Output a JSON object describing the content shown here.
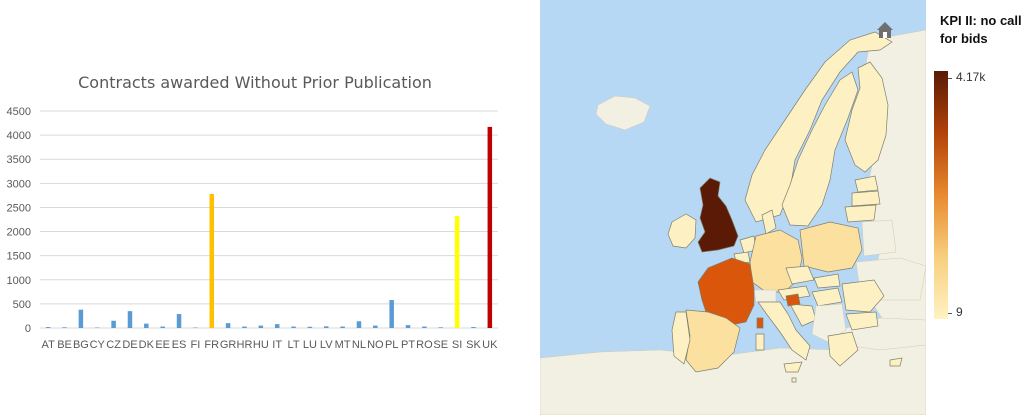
{
  "chart_data": {
    "type": "bar",
    "title": "Contracts awarded Without Prior Publication",
    "categories": [
      "AT",
      "BE",
      "BG",
      "CY",
      "CZ",
      "DE",
      "DK",
      "EE",
      "ES",
      "FI",
      "FR",
      "GR",
      "HR",
      "HU",
      "IT",
      "LT",
      "LU",
      "LV",
      "MT",
      "NL",
      "NO",
      "PL",
      "PT",
      "RO",
      "SE",
      "SI",
      "SK",
      "UK"
    ],
    "values": [
      20,
      15,
      380,
      10,
      150,
      350,
      90,
      30,
      290,
      10,
      2780,
      100,
      30,
      50,
      80,
      30,
      25,
      35,
      30,
      140,
      50,
      580,
      60,
      30,
      15,
      2320,
      20,
      4170
    ],
    "bar_colors": [
      "#5b9bd5",
      "#5b9bd5",
      "#5b9bd5",
      "#5b9bd5",
      "#5b9bd5",
      "#5b9bd5",
      "#5b9bd5",
      "#5b9bd5",
      "#5b9bd5",
      "#5b9bd5",
      "#ffc000",
      "#5b9bd5",
      "#5b9bd5",
      "#5b9bd5",
      "#5b9bd5",
      "#5b9bd5",
      "#5b9bd5",
      "#5b9bd5",
      "#5b9bd5",
      "#5b9bd5",
      "#5b9bd5",
      "#5b9bd5",
      "#5b9bd5",
      "#5b9bd5",
      "#5b9bd5",
      "#ffff00",
      "#5b9bd5",
      "#c00000"
    ],
    "yticks": [
      0,
      500,
      1000,
      1500,
      2000,
      2500,
      3000,
      3500,
      4000,
      4500
    ],
    "ylim": [
      0,
      4500
    ],
    "xlabel": "",
    "ylabel": "",
    "grid": true
  },
  "map": {
    "legend_title": "KPI II: no call for bids",
    "legend_max": "4.17k",
    "legend_min": "9",
    "colors": {
      "sea": "#b7d8f4",
      "land_nodata": "#f2f0e2",
      "low": "#fdf0c2",
      "mid_low": "#fbe0a0",
      "mid": "#f6c679",
      "high": "#d9560b",
      "max": "#5b1a05",
      "border": "#7f7f6f"
    },
    "home_icon": "home-icon"
  }
}
